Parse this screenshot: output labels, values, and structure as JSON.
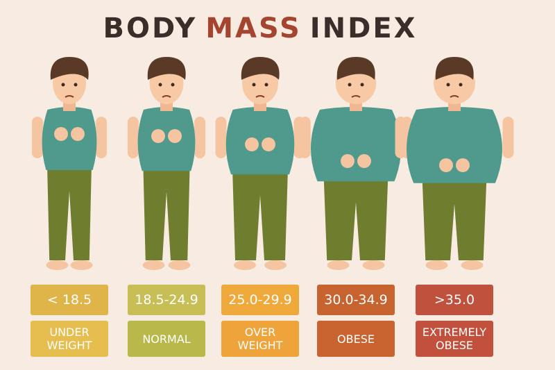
{
  "title": {
    "words": [
      "BODY",
      "MASS",
      "INDEX"
    ]
  },
  "categories": [
    {
      "range": "< 18.5",
      "label": "UNDER WEIGHT"
    },
    {
      "range": "18.5-24.9",
      "label": "NORMAL"
    },
    {
      "range": "25.0-29.9",
      "label": "OVER WEIGHT"
    },
    {
      "range": "30.0-34.9",
      "label": "OBESE"
    },
    {
      "range": ">35.0",
      "label": "EXTREMELY OBESE"
    }
  ]
}
